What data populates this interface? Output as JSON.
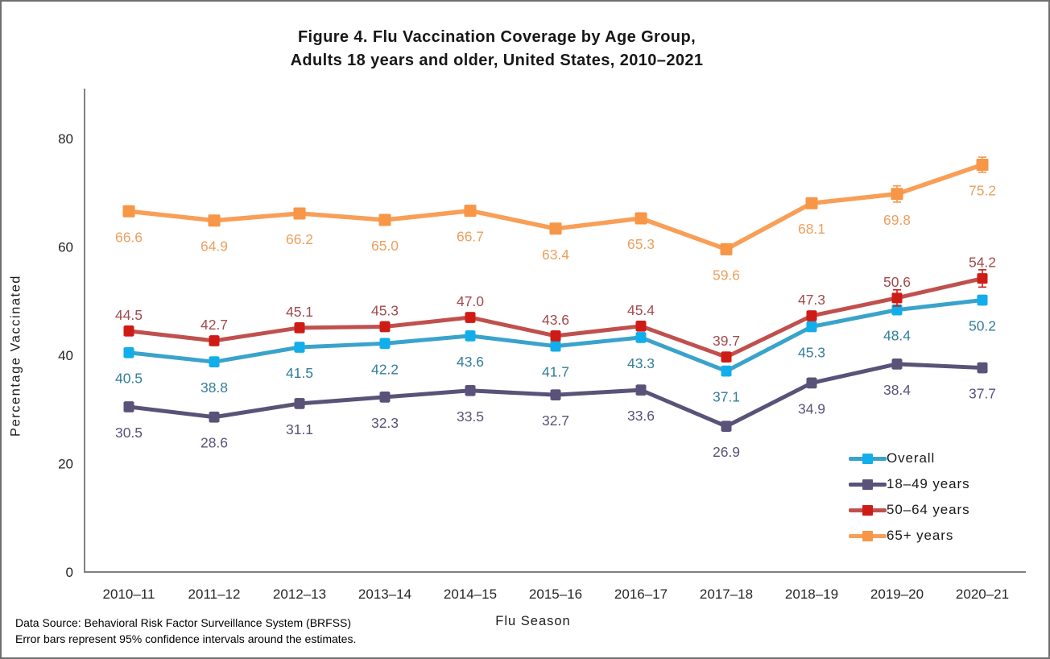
{
  "figure": {
    "border_color": "#6f6f6f",
    "background": "#ffffff"
  },
  "footer": {
    "line1": "Data Source: Behavioral Risk Factor Surveillance System (BRFSS)",
    "line2": "Error bars represent 95% confidence  intervals  around  the  estimates."
  },
  "chart_data": {
    "type": "line",
    "title": "Figure 4. Flu Vaccination Coverage by Age Group,",
    "subtitle": "Adults 18 years and older, United States, 2010–2021",
    "xlabel": "Flu Season",
    "ylabel": "Percentage Vaccinated",
    "categories": [
      "2010–11",
      "2011–12",
      "2012–13",
      "2013–14",
      "2014–15",
      "2015–16",
      "2016–17",
      "2017–18",
      "2018–19",
      "2019–20",
      "2020–21"
    ],
    "yticks": [
      0,
      20,
      40,
      60,
      80
    ],
    "ylim": [
      0,
      88
    ],
    "grid": false,
    "legend_position": "inside bottom-right",
    "error_bar_note": "95% confidence intervals",
    "axis_color": "#808080",
    "tick_label_color": "#262626",
    "series": [
      {
        "name": "Overall",
        "values": [
          40.5,
          38.8,
          41.5,
          42.2,
          43.6,
          41.7,
          43.3,
          37.1,
          45.3,
          48.4,
          50.2
        ],
        "ci_half": [
          0.9,
          0.9,
          0.9,
          0.9,
          0.9,
          0.9,
          0.9,
          0.9,
          0.9,
          0.9,
          0.9
        ],
        "line_color": "#3AA3CB",
        "marker_color": "#12AEEC",
        "label_color": "#337E99",
        "label_position": "below",
        "line_width": 5,
        "marker_size": 13
      },
      {
        "name": "18–49 years",
        "values": [
          30.5,
          28.6,
          31.1,
          32.3,
          33.5,
          32.7,
          33.6,
          26.9,
          34.9,
          38.4,
          37.7
        ],
        "ci_half": [
          0.9,
          0.9,
          0.9,
          0.9,
          0.9,
          0.9,
          0.9,
          0.9,
          0.9,
          0.9,
          0.9
        ],
        "line_color": "#5A5278",
        "marker_color": "#5A5278",
        "label_color": "#5A5278",
        "label_position": "below",
        "line_width": 5,
        "marker_size": 13
      },
      {
        "name": "50–64 years",
        "values": [
          44.5,
          42.7,
          45.1,
          45.3,
          47.0,
          43.6,
          45.4,
          39.7,
          47.3,
          50.6,
          54.2
        ],
        "ci_half": [
          0.9,
          0.9,
          0.9,
          0.9,
          0.9,
          0.9,
          0.9,
          0.9,
          0.9,
          1.5,
          1.6
        ],
        "line_color": "#C0504D",
        "marker_color": "#CF1B15",
        "label_color": "#A14B4E",
        "label_position": "above",
        "line_width": 5,
        "marker_size": 13
      },
      {
        "name": "65+ years",
        "values": [
          66.6,
          64.9,
          66.2,
          65.0,
          66.7,
          63.4,
          65.3,
          59.6,
          68.1,
          69.8,
          75.2
        ],
        "ci_half": [
          0.9,
          0.9,
          0.9,
          0.9,
          0.9,
          0.9,
          0.9,
          0.9,
          0.9,
          1.5,
          1.4
        ],
        "line_color": "#F89F57",
        "marker_color": "#F79646",
        "label_color": "#ECA05F",
        "label_position": "below",
        "line_width": 5.5,
        "marker_size": 15
      }
    ]
  }
}
